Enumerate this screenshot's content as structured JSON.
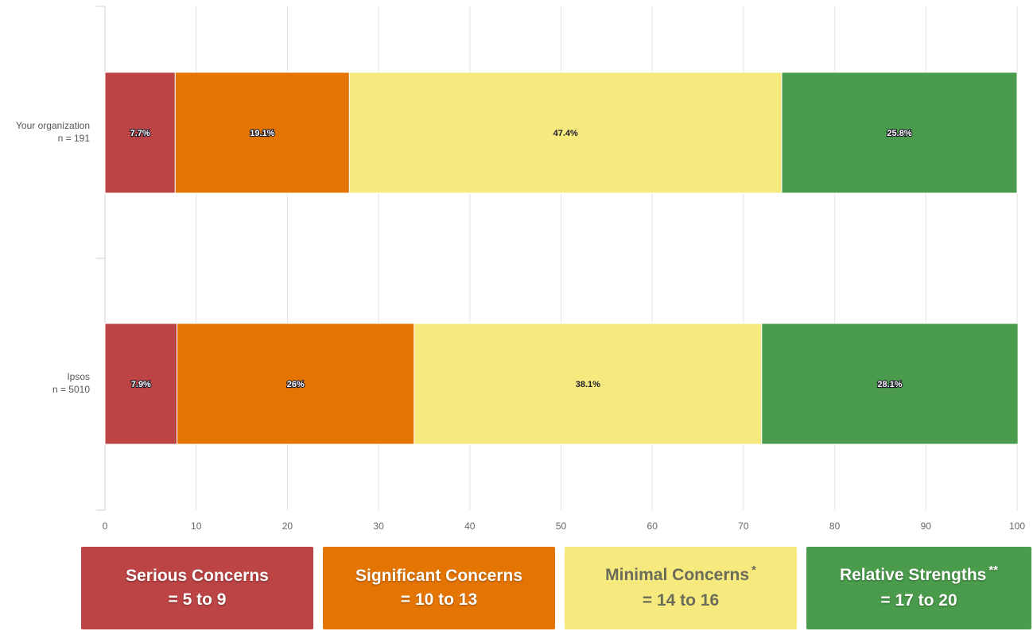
{
  "chart_data": {
    "type": "bar",
    "orientation": "horizontal",
    "stacked": true,
    "categories": [
      {
        "label": "Your organization",
        "n_label": "n = 191"
      },
      {
        "label": "Ipsos",
        "n_label": "n = 5010"
      }
    ],
    "series": [
      {
        "color": "#bc4445",
        "values": [
          7.7,
          7.9
        ],
        "value_labels": [
          "7.7%",
          "7.9%"
        ]
      },
      {
        "color": "#e57503",
        "values": [
          19.1,
          26
        ],
        "value_labels": [
          "19.1%",
          "26%"
        ]
      },
      {
        "color": "#f6e97e",
        "values": [
          47.4,
          38.1
        ],
        "value_labels": [
          "47.4%",
          "38.1%"
        ]
      },
      {
        "color": "#4a9b4b",
        "values": [
          25.8,
          28.1
        ],
        "value_labels": [
          "25.8%",
          "28.1%"
        ]
      }
    ],
    "xlim": [
      0,
      100
    ],
    "xticks": [
      0,
      10,
      20,
      30,
      40,
      50,
      60,
      70,
      80,
      90,
      100
    ],
    "grid": true,
    "xlabel": "",
    "ylabel": "",
    "title": ""
  },
  "legend": {
    "items": [
      {
        "line1": "Serious Concerns",
        "line2": "= 5 to 9",
        "sup": "",
        "color": "#bc4445"
      },
      {
        "line1": "Significant Concerns",
        "line2": "= 10 to 13",
        "sup": "",
        "color": "#e57503"
      },
      {
        "line1": "Minimal Concerns",
        "line2": "= 14 to 16",
        "sup": "*",
        "color": "#f6e97e"
      },
      {
        "line1": "Relative Strengths",
        "line2": "= 17 to 20",
        "sup": "**",
        "color": "#4a9b4b"
      }
    ]
  }
}
